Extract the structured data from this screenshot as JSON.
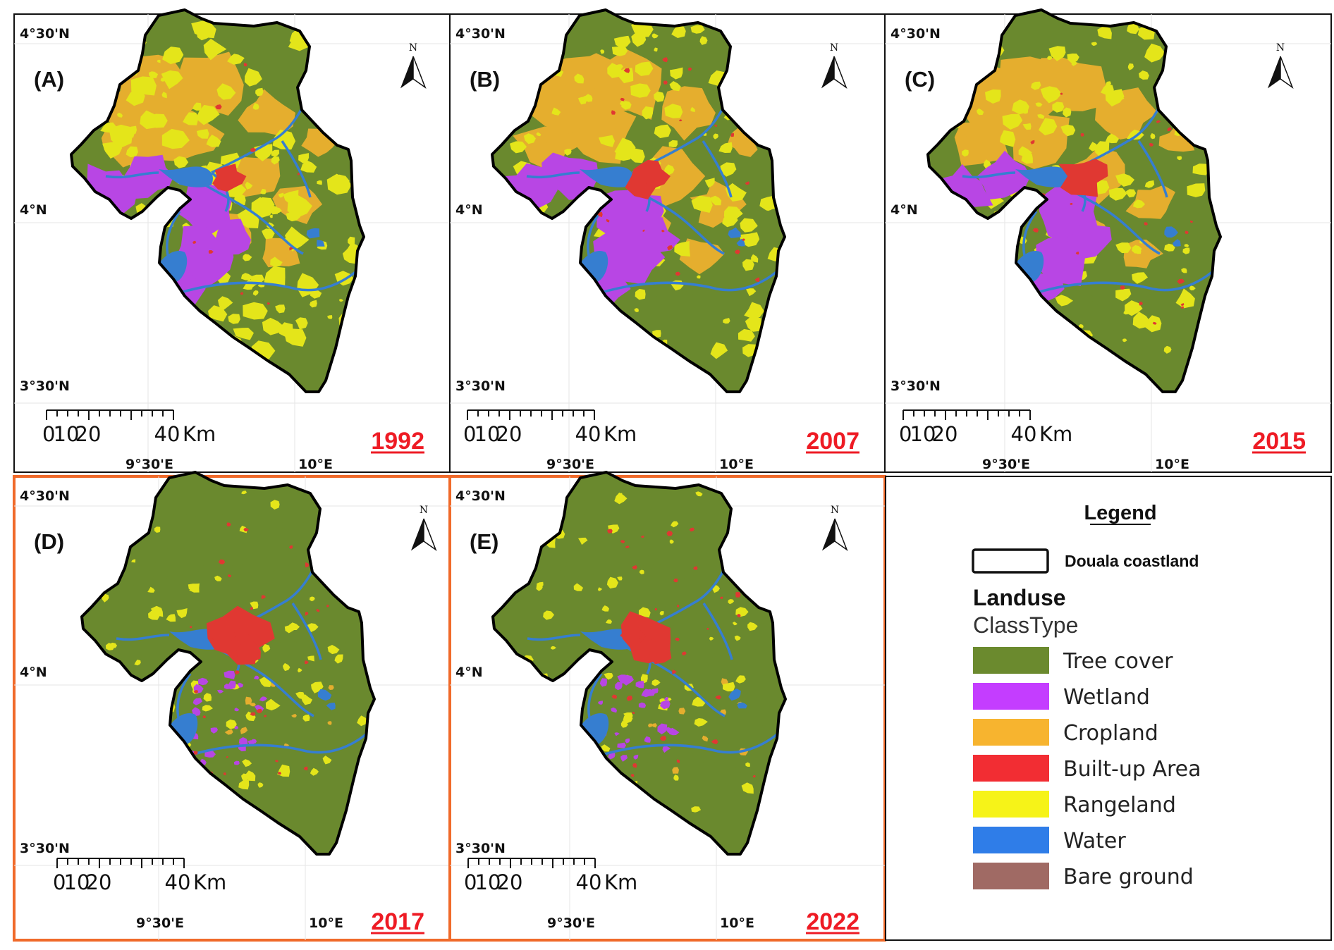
{
  "colors": {
    "tree_cover": "#6b8a2e",
    "wetland": "#c43dff",
    "cropland": "#f7b42f",
    "built_up": "#f22d33",
    "rangeland": "#f6f318",
    "water": "#2f7de8",
    "bare_ground": "#a06a64",
    "year_label": "#ee1b24",
    "highlight_frame": "#f06a2a",
    "frame": "#111111"
  },
  "coordinates": {
    "lat_top": "4°30'N",
    "lat_mid": "4°N",
    "lat_bottom": "3°30'N",
    "lon_left": "9°30'E",
    "lon_right": "10°E"
  },
  "north_arrow_label": "N",
  "scale_bar": {
    "ticks": [
      "0",
      "10",
      "20",
      "40"
    ],
    "unit": "Km"
  },
  "panels": [
    {
      "letter": "(A)",
      "year": "1992",
      "icon": "north-arrow-icon",
      "highlighted": false,
      "built_up_level": 1,
      "crop_level": 3,
      "wetland_level": 3,
      "rangeland_level": 3
    },
    {
      "letter": "(B)",
      "year": "2007",
      "icon": "north-arrow-icon",
      "highlighted": false,
      "built_up_level": 2,
      "crop_level": 3,
      "wetland_level": 3,
      "rangeland_level": 2
    },
    {
      "letter": "(C)",
      "year": "2015",
      "icon": "north-arrow-icon",
      "highlighted": false,
      "built_up_level": 2,
      "crop_level": 3,
      "wetland_level": 2,
      "rangeland_level": 2
    },
    {
      "letter": "(D)",
      "year": "2017",
      "icon": "north-arrow-icon",
      "highlighted": true,
      "built_up_level": 3,
      "crop_level": 0,
      "wetland_level": 1,
      "rangeland_level": 1
    },
    {
      "letter": "(E)",
      "year": "2022",
      "icon": "north-arrow-icon",
      "highlighted": true,
      "built_up_level": 3,
      "crop_level": 0,
      "wetland_level": 1,
      "rangeland_level": 1
    }
  ],
  "legend": {
    "title": "Legend",
    "boundary_label": "Douala coastland",
    "group_title": "Landuse",
    "group_subtitle": "ClassType",
    "items": [
      {
        "label": "Tree cover",
        "color_key": "tree_cover"
      },
      {
        "label": "Wetland",
        "color_key": "wetland"
      },
      {
        "label": "Cropland",
        "color_key": "cropland"
      },
      {
        "label": "Built-up Area",
        "color_key": "built_up"
      },
      {
        "label": "Rangeland",
        "color_key": "rangeland"
      },
      {
        "label": "Water",
        "color_key": "water"
      },
      {
        "label": "Bare ground",
        "color_key": "bare_ground"
      }
    ]
  }
}
